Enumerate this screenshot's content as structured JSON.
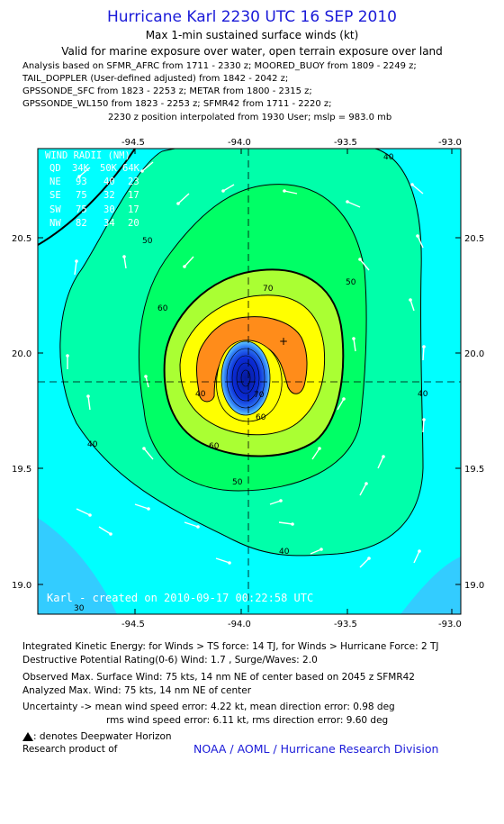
{
  "header": {
    "title": "Hurricane Karl 2230 UTC 16 SEP 2010",
    "subtitle": "Max 1-min sustained surface winds (kt)",
    "validity": "Valid for marine exposure over water, open terrain exposure over land"
  },
  "analysis_lines": [
    "Analysis based on SFMR_AFRC from 1711 - 2330 z; MOORED_BUOY from 1809 - 2249 z;",
    "TAIL_DOPPLER (User-defined adjusted) from 1842 - 2042 z;",
    "GPSSONDE_SFC from 1823 - 2253 z; METAR from 1800 - 2315 z;",
    "GPSSONDE_WL150 from 1823 - 2253 z; SFMR42 from 1711 - 2220 z;"
  ],
  "position_line": "2230 z position interpolated from 1930 User; mslp = 983.0 mb",
  "map": {
    "lon_ticks": [
      "-94.5",
      "-94.0",
      "-93.5",
      "-93.0"
    ],
    "lat_ticks": [
      "20.5",
      "20.0",
      "19.5",
      "19.0"
    ],
    "center": {
      "lon": -93.97,
      "lat": 19.88
    },
    "max_wind_marker": {
      "lon": -93.79,
      "lat": 20.05
    },
    "contour_labels": [
      "40",
      "50",
      "60",
      "70",
      "40",
      "50",
      "60",
      "40",
      "50",
      "60",
      "70",
      "40",
      "40",
      "30"
    ],
    "colors": {
      "w0_34": "#00ffff",
      "w34_50": "#00ffaa",
      "w50_64": "#00ff66",
      "w60_64": "#aaff33",
      "w64_70": "#ffff00",
      "w70_plus": "#ff8c1a",
      "eye_low": "#0a2bd6",
      "bg_cyan_deep": "#33ccff"
    },
    "wind_radii": {
      "title": "WIND RADII (NM)",
      "header": [
        "QD",
        "34K",
        "50K",
        "64K"
      ],
      "rows": [
        [
          "NE",
          "93",
          "40",
          "23"
        ],
        [
          "SE",
          "75",
          "32",
          "17"
        ],
        [
          "SW",
          "75",
          "30",
          "17"
        ],
        [
          "NW",
          "82",
          "34",
          "20"
        ]
      ]
    },
    "created_text": "Karl - created on 2010-09-17 00:22:58 UTC"
  },
  "info": {
    "ike": "Integrated Kinetic Energy:  for Winds > TS force: 14 TJ,  for Winds > Hurricane Force: 2 TJ",
    "dpr": "Destructive Potential Rating(0-6)   Wind: 1.7 , Surge/Waves: 2.0",
    "observed": "Observed Max. Surface Wind: 75 kts, 14 nm NE of center based on 2045 z SFMR42",
    "analyzed": "Analyzed Max. Wind: 75 kts, 14 nm NE of center",
    "uncertainty_mean": "Uncertainty -> mean wind speed error: 4.22 kt,   mean direction error: 0.98 deg",
    "uncertainty_rms": "rms wind speed error: 6.11 kt,   rms direction error: 9.60 deg",
    "legend_note": ": denotes Deepwater Horizon",
    "research_of": "Research product of",
    "org": "NOAA / AOML / Hurricane Research Division"
  }
}
